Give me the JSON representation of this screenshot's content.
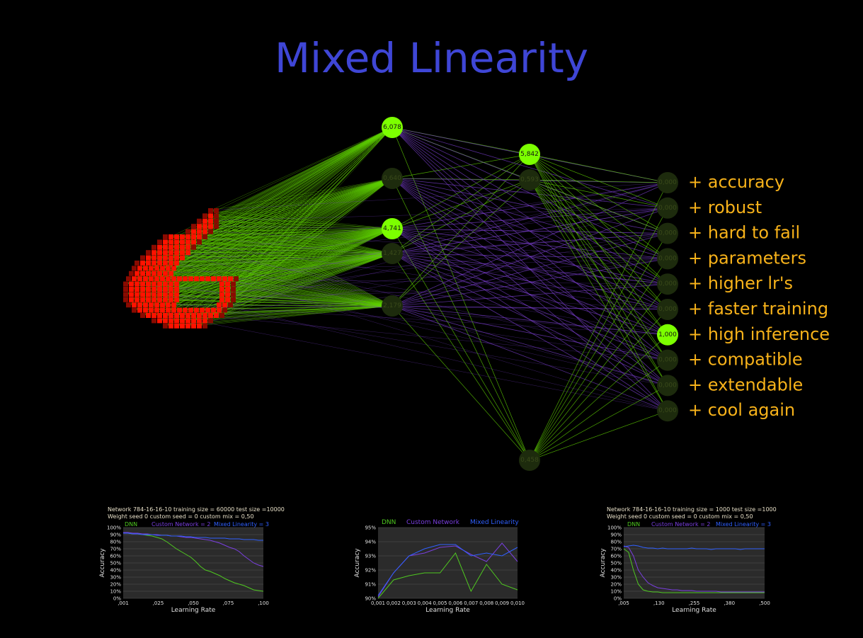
{
  "title": "Mixed Linearity",
  "network": {
    "hidden1": [
      {
        "label": "6,078",
        "active": true
      },
      {
        "label": "0,640",
        "active": false
      },
      {
        "label": "4,741",
        "active": true
      },
      {
        "label": "1,427",
        "active": false
      },
      {
        "label": "2,179",
        "active": false
      }
    ],
    "hidden2": [
      {
        "label": "5,842",
        "active": true
      },
      {
        "label": "0,593",
        "active": false
      },
      {
        "label": "0,458",
        "active": false
      }
    ],
    "outputs": [
      {
        "label": "0,000",
        "feature": "+ accuracy",
        "active": false
      },
      {
        "label": "0,000",
        "feature": "+ robust",
        "active": false
      },
      {
        "label": "0,000",
        "feature": "+ hard to fail",
        "active": false
      },
      {
        "label": "0,000",
        "feature": "+ parameters",
        "active": false
      },
      {
        "label": "0,000",
        "feature": "+ higher lr's",
        "active": false
      },
      {
        "label": "0,000",
        "feature": "+ faster training",
        "active": false
      },
      {
        "label": "1,000",
        "feature": "+ high inference",
        "active": true
      },
      {
        "label": "0,000",
        "feature": "+ compatible",
        "active": false
      },
      {
        "label": "0,000",
        "feature": "+ extendable",
        "active": false
      },
      {
        "label": "0,000",
        "feature": "+ cool again",
        "active": false
      }
    ],
    "colors": {
      "active": "#7cff00",
      "inactive": "#1d2b0d",
      "green_edge": "#5fd000",
      "purple_edge": "#7a3fd0",
      "pixel": "#ff1200",
      "pixel_dim": "#8a0a00"
    }
  },
  "chart_data": [
    {
      "type": "line",
      "header": [
        "Network 784-16-16-10   training size = 60000   test size =10000",
        "Weight seed 0   custom seed = 0   custom mix = 0,50"
      ],
      "legend": [
        "DNN",
        "Custom Network = 2",
        "Mixed Linearity = 3"
      ],
      "ylabel": "Accuracy",
      "xlabel": "Learning Rate",
      "yticks": [
        "100%",
        "90%",
        "80%",
        "70%",
        "60%",
        "50%",
        "40%",
        "30%",
        "20%",
        "10%",
        "0%"
      ],
      "xticks": [
        ",001",
        ",025",
        ",050",
        ",075",
        ",100"
      ],
      "ylim": [
        0,
        100
      ],
      "series": [
        {
          "name": "DNN",
          "color": "#4fc820",
          "values": [
            92,
            92,
            91,
            91,
            90,
            89,
            88,
            86,
            84,
            80,
            75,
            70,
            66,
            62,
            58,
            52,
            45,
            40,
            38,
            35,
            32,
            28,
            25,
            22,
            20,
            18,
            15,
            12,
            11,
            10
          ]
        },
        {
          "name": "Custom Network",
          "color": "#7a3fe0",
          "values": [
            93,
            93,
            92,
            92,
            91,
            91,
            90,
            90,
            89,
            89,
            88,
            88,
            87,
            86,
            86,
            85,
            84,
            83,
            82,
            80,
            78,
            75,
            72,
            70,
            66,
            60,
            55,
            50,
            47,
            45
          ]
        },
        {
          "name": "Mixed Linearity",
          "color": "#3060ff",
          "values": [
            92,
            92,
            91,
            91,
            90,
            90,
            90,
            89,
            89,
            89,
            88,
            88,
            88,
            87,
            87,
            86,
            86,
            86,
            85,
            85,
            85,
            85,
            84,
            84,
            84,
            83,
            83,
            83,
            82,
            82
          ]
        }
      ]
    },
    {
      "type": "line",
      "header": [],
      "legend": [
        "DNN",
        "Custom Network",
        "Mixed Linearity"
      ],
      "ylabel": "Accuracy",
      "xlabel": "Learning Rate",
      "yticks": [
        "95%",
        "94%",
        "93%",
        "92%",
        "91%",
        "90%"
      ],
      "xticks": [
        "0,001",
        "0,002",
        "0,003",
        "0,004",
        "0,005",
        "0,006",
        "0,007",
        "0,008",
        "0,009",
        "0,010"
      ],
      "ylim": [
        90,
        95
      ],
      "series": [
        {
          "name": "DNN",
          "color": "#4fc820",
          "values": [
            90.0,
            91.3,
            91.6,
            91.8,
            91.8,
            93.2,
            90.5,
            92.4,
            91.0,
            90.6
          ]
        },
        {
          "name": "Custom Network",
          "color": "#7a3fe0",
          "values": [
            90.1,
            91.8,
            93.0,
            93.2,
            93.6,
            93.7,
            93.1,
            92.6,
            93.9,
            92.6
          ]
        },
        {
          "name": "Mixed Linearity",
          "color": "#3060ff",
          "values": [
            90.2,
            91.8,
            93.0,
            93.5,
            93.8,
            93.8,
            93.0,
            93.2,
            93.0,
            93.6
          ]
        }
      ]
    },
    {
      "type": "line",
      "header": [
        "Network 784-16-16-10 training size = 1000 test size =1000",
        "Weight seed 0 custom seed = 0 custom mix = 0,50"
      ],
      "legend": [
        "DNN",
        "Custom Network = 2",
        "Mixed Linearity = 3"
      ],
      "ylabel": "Accuracy",
      "xlabel": "Learning Rate",
      "yticks": [
        "100%",
        "90%",
        "80%",
        "70%",
        "60%",
        "50%",
        "40%",
        "30%",
        "20%",
        "10%",
        "0%"
      ],
      "xticks": [
        ",005",
        ",130",
        ",255",
        ",380",
        ",500"
      ],
      "ylim": [
        0,
        100
      ],
      "series": [
        {
          "name": "DNN",
          "color": "#4fc820",
          "values": [
            70,
            65,
            40,
            20,
            12,
            10,
            9,
            9,
            8,
            8,
            8,
            8,
            8,
            8,
            8,
            8,
            8,
            8,
            8,
            8,
            8,
            8,
            8,
            8,
            8,
            8,
            8,
            8,
            8,
            8
          ]
        },
        {
          "name": "Custom Network",
          "color": "#7a3fe0",
          "values": [
            74,
            72,
            60,
            40,
            30,
            22,
            18,
            15,
            14,
            13,
            12,
            12,
            11,
            11,
            11,
            10,
            10,
            10,
            10,
            10,
            9,
            9,
            9,
            9,
            9,
            9,
            9,
            9,
            9,
            9
          ]
        },
        {
          "name": "Mixed Linearity",
          "color": "#3060ff",
          "values": [
            73,
            74,
            75,
            74,
            72,
            71,
            71,
            70,
            71,
            70,
            70,
            70,
            70,
            70,
            71,
            70,
            70,
            70,
            69,
            70,
            70,
            70,
            70,
            70,
            69,
            70,
            70,
            70,
            70,
            70
          ]
        }
      ]
    }
  ]
}
